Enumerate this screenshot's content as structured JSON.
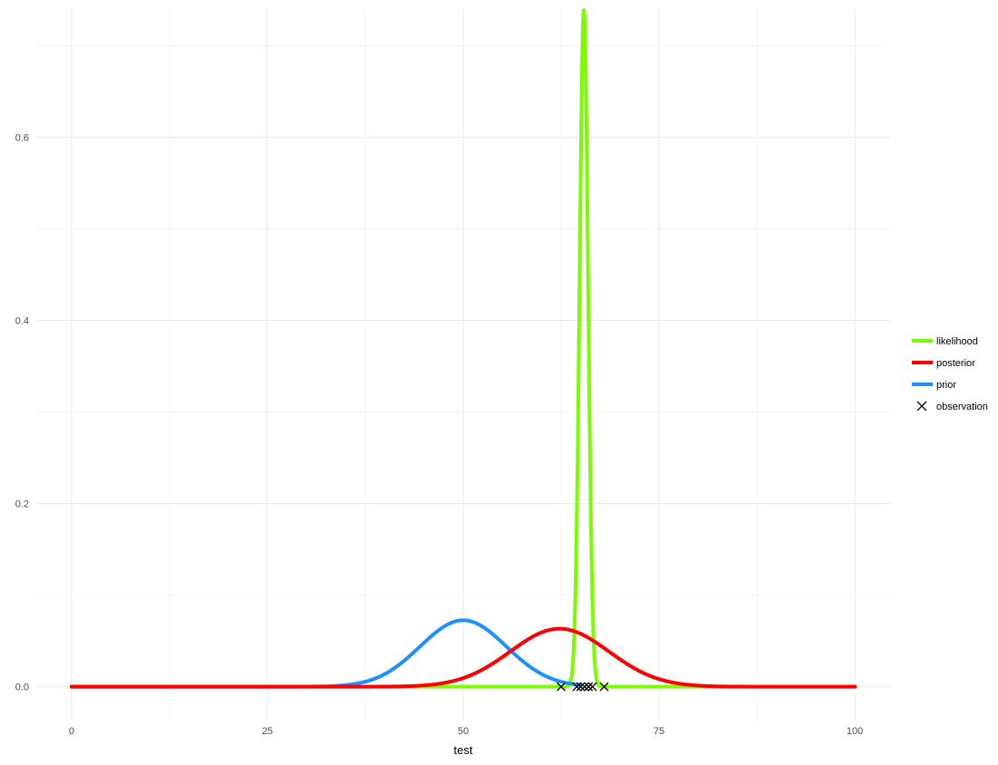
{
  "chart_data": {
    "type": "line",
    "title": "",
    "xlabel": "test",
    "ylabel": "",
    "xlim": [
      -4.5,
      104.5
    ],
    "ylim": [
      -0.037,
      0.74
    ],
    "x_ticks": [
      0,
      25,
      50,
      75,
      100
    ],
    "x_tick_labels": [
      "0",
      "25",
      "50",
      "75",
      "100"
    ],
    "y_ticks": [
      0.0,
      0.2,
      0.4,
      0.6
    ],
    "y_tick_labels": [
      "0.0",
      "0.2",
      "0.4",
      "0.6"
    ],
    "grid": true,
    "legend_position": "right",
    "series": [
      {
        "name": "likelihood",
        "kind": "normal_curve",
        "color": "#7CFC00",
        "mean": 65.4,
        "sd": 0.54,
        "x_range": [
          0,
          100
        ]
      },
      {
        "name": "posterior",
        "kind": "normal_curve",
        "color": "#FF0000",
        "mean": 62.3,
        "sd": 6.3,
        "x_range": [
          0,
          100
        ]
      },
      {
        "name": "prior",
        "kind": "normal_curve",
        "color": "#1E90FF",
        "mean": 50.0,
        "sd": 5.5,
        "x_range": [
          0,
          65
        ]
      }
    ],
    "observations": {
      "name": "observation",
      "color": "#000000",
      "marker": "x",
      "x": [
        62.5,
        64.5,
        65.0,
        65.5,
        66.0,
        66.5,
        68.0
      ],
      "y": [
        0,
        0,
        0,
        0,
        0,
        0,
        0
      ]
    },
    "legend": [
      {
        "label": "likelihood",
        "color": "#7CFC00",
        "symbol": "line"
      },
      {
        "label": "posterior",
        "color": "#FF0000",
        "symbol": "line"
      },
      {
        "label": "prior",
        "color": "#1E90FF",
        "symbol": "line"
      },
      {
        "label": "observation",
        "color": "#000000",
        "symbol": "x"
      }
    ]
  }
}
